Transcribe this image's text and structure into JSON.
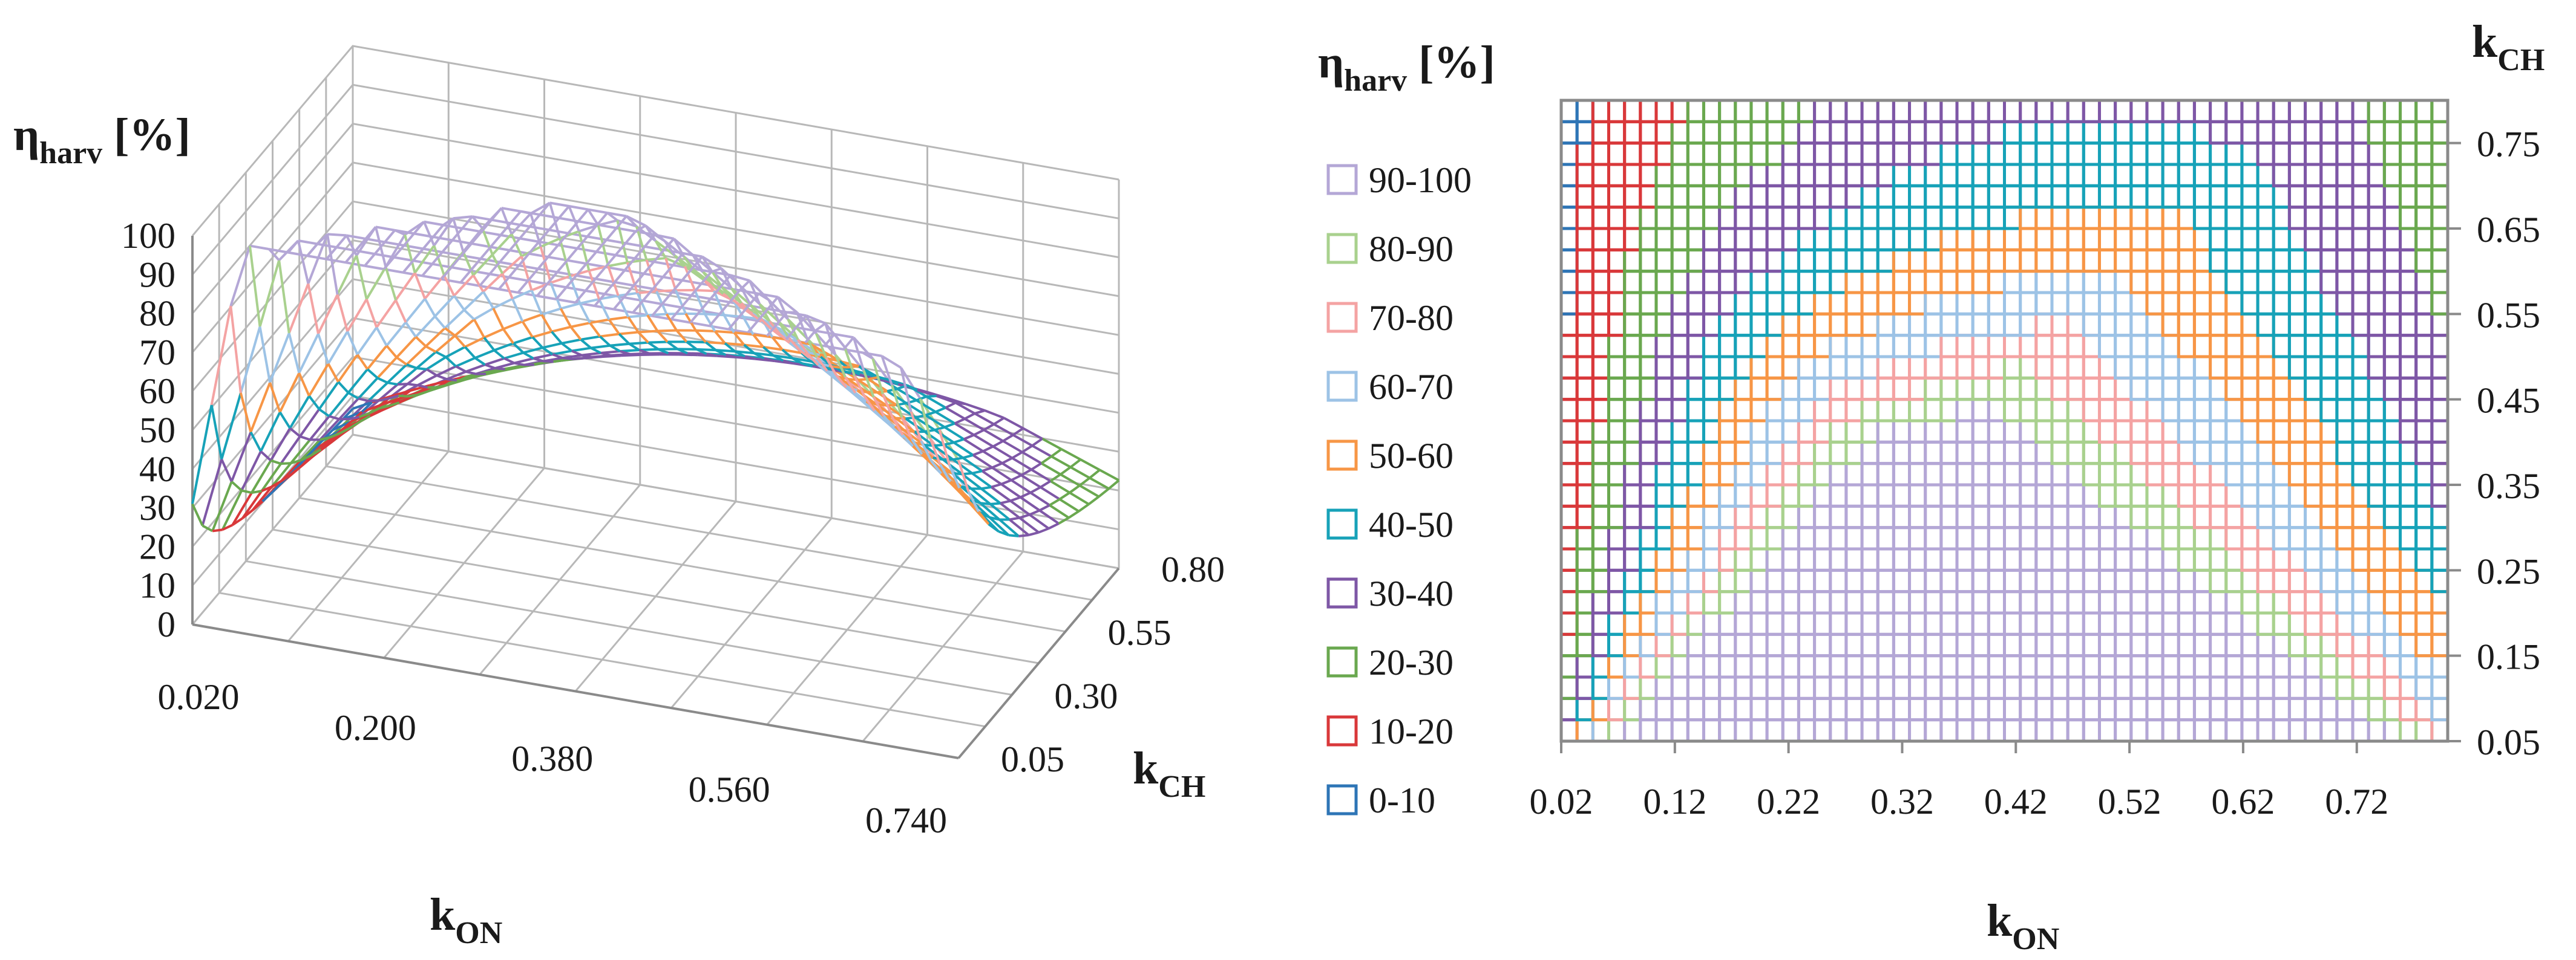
{
  "chart_data": [
    {
      "type": "surface3d",
      "title": "",
      "zlabel": {
        "main": "η",
        "sub": "harv",
        "unit": " [%]"
      },
      "xlabel": {
        "main": "k",
        "sub": "ON"
      },
      "ylabel": {
        "main": "k",
        "sub": "CH"
      },
      "z_ticks": [
        "0",
        "10",
        "20",
        "30",
        "40",
        "50",
        "60",
        "70",
        "80",
        "90",
        "100"
      ],
      "x_ticks": [
        "0.020",
        "0.200",
        "0.380",
        "0.560",
        "0.740"
      ],
      "y_ticks": [
        "0.05",
        "0.30",
        "0.55",
        "0.80"
      ],
      "zlim": [
        0,
        100
      ],
      "xlim": [
        0.02,
        0.8
      ],
      "ylim": [
        0.05,
        0.8
      ],
      "x_grid_count": 40,
      "y_grid_count": 16,
      "color_bands": [
        "0-10",
        "10-20",
        "20-30",
        "30-40",
        "40-50",
        "50-60",
        "60-70",
        "70-80",
        "80-90",
        "90-100"
      ]
    },
    {
      "type": "contour",
      "title": "",
      "legend_title": {
        "main": "η",
        "sub": "harv",
        "unit": " [%]"
      },
      "xlabel": {
        "main": "k",
        "sub": "ON"
      },
      "ylabel": {
        "main": "k",
        "sub": "CH"
      },
      "x_ticks": [
        "0.02",
        "0.12",
        "0.22",
        "0.32",
        "0.42",
        "0.52",
        "0.62",
        "0.72"
      ],
      "y_ticks": [
        "0.05",
        "0.15",
        "0.25",
        "0.35",
        "0.45",
        "0.55",
        "0.65",
        "0.75"
      ],
      "xlim": [
        0.02,
        0.8
      ],
      "ylim": [
        0.05,
        0.8
      ],
      "legend_position": "left",
      "legend": [
        {
          "label": "90-100",
          "color": "#b4a7d6"
        },
        {
          "label": "80-90",
          "color": "#a9d18e"
        },
        {
          "label": "70-80",
          "color": "#f4a3a3"
        },
        {
          "label": "60-70",
          "color": "#9dc3e6"
        },
        {
          "label": "50-60",
          "color": "#f79646"
        },
        {
          "label": "40-50",
          "color": "#17a2b8"
        },
        {
          "label": "30-40",
          "color": "#7e57a6"
        },
        {
          "label": "20-30",
          "color": "#6aa84f"
        },
        {
          "label": "10-20",
          "color": "#d9383a"
        },
        {
          "label": "0-10",
          "color": "#2e75b6"
        }
      ]
    }
  ]
}
